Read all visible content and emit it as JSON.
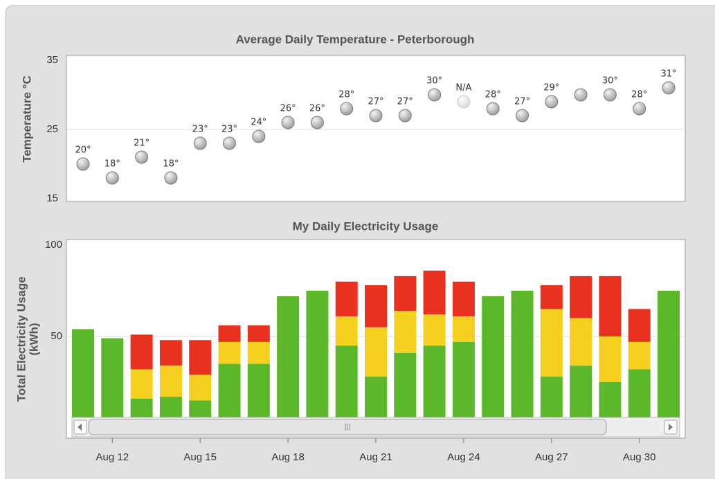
{
  "chart_data": [
    {
      "type": "scatter",
      "title": "Average Daily Temperature - Peterborough",
      "ylabel": "Temperature °C",
      "values": [
        20,
        18,
        21,
        18,
        23,
        23,
        24,
        26,
        26,
        28,
        27,
        27,
        30,
        null,
        28,
        27,
        29,
        30,
        30,
        28,
        31
      ],
      "value_labels": [
        "20°",
        "18°",
        "21°",
        "18°",
        "23°",
        "23°",
        "24°",
        "26°",
        "26°",
        "28°",
        "27°",
        "27°",
        "30°",
        "N/A",
        "28°",
        "27°",
        "29°",
        null,
        "30°",
        "28°",
        "31°"
      ],
      "color": "#999999",
      "ylim": [
        15,
        35
      ],
      "yticks": [
        15,
        25,
        35
      ],
      "grid": true
    },
    {
      "type": "stacked-bar",
      "title": "My Daily Electricity Usage",
      "ylabel": [
        "Total Electricity Usage",
        "(kWh)"
      ],
      "categories": [
        null,
        "Aug 12",
        null,
        null,
        "Aug 15",
        null,
        null,
        "Aug 18",
        null,
        null,
        "Aug 21",
        null,
        null,
        "Aug 24",
        null,
        null,
        "Aug 27",
        null,
        null,
        "Aug 30",
        null
      ],
      "series": [
        {
          "color": "#5cb82a",
          "values": [
            54,
            49,
            16,
            17,
            15,
            35,
            35,
            72,
            75,
            45,
            28,
            41,
            45,
            47,
            72,
            75,
            28,
            34,
            25,
            32,
            75
          ]
        },
        {
          "color": "#f5d020",
          "values": [
            0,
            0,
            16,
            17,
            14,
            12,
            12,
            0,
            0,
            16,
            27,
            23,
            17,
            14,
            0,
            0,
            37,
            26,
            25,
            15,
            0
          ]
        },
        {
          "color": "#e8321f",
          "values": [
            0,
            0,
            19,
            14,
            19,
            9,
            9,
            0,
            0,
            19,
            23,
            19,
            24,
            19,
            0,
            0,
            13,
            23,
            33,
            18,
            0
          ]
        }
      ],
      "ylim": [
        0,
        100
      ],
      "yticks": [
        50,
        100
      ],
      "grid": true
    }
  ]
}
